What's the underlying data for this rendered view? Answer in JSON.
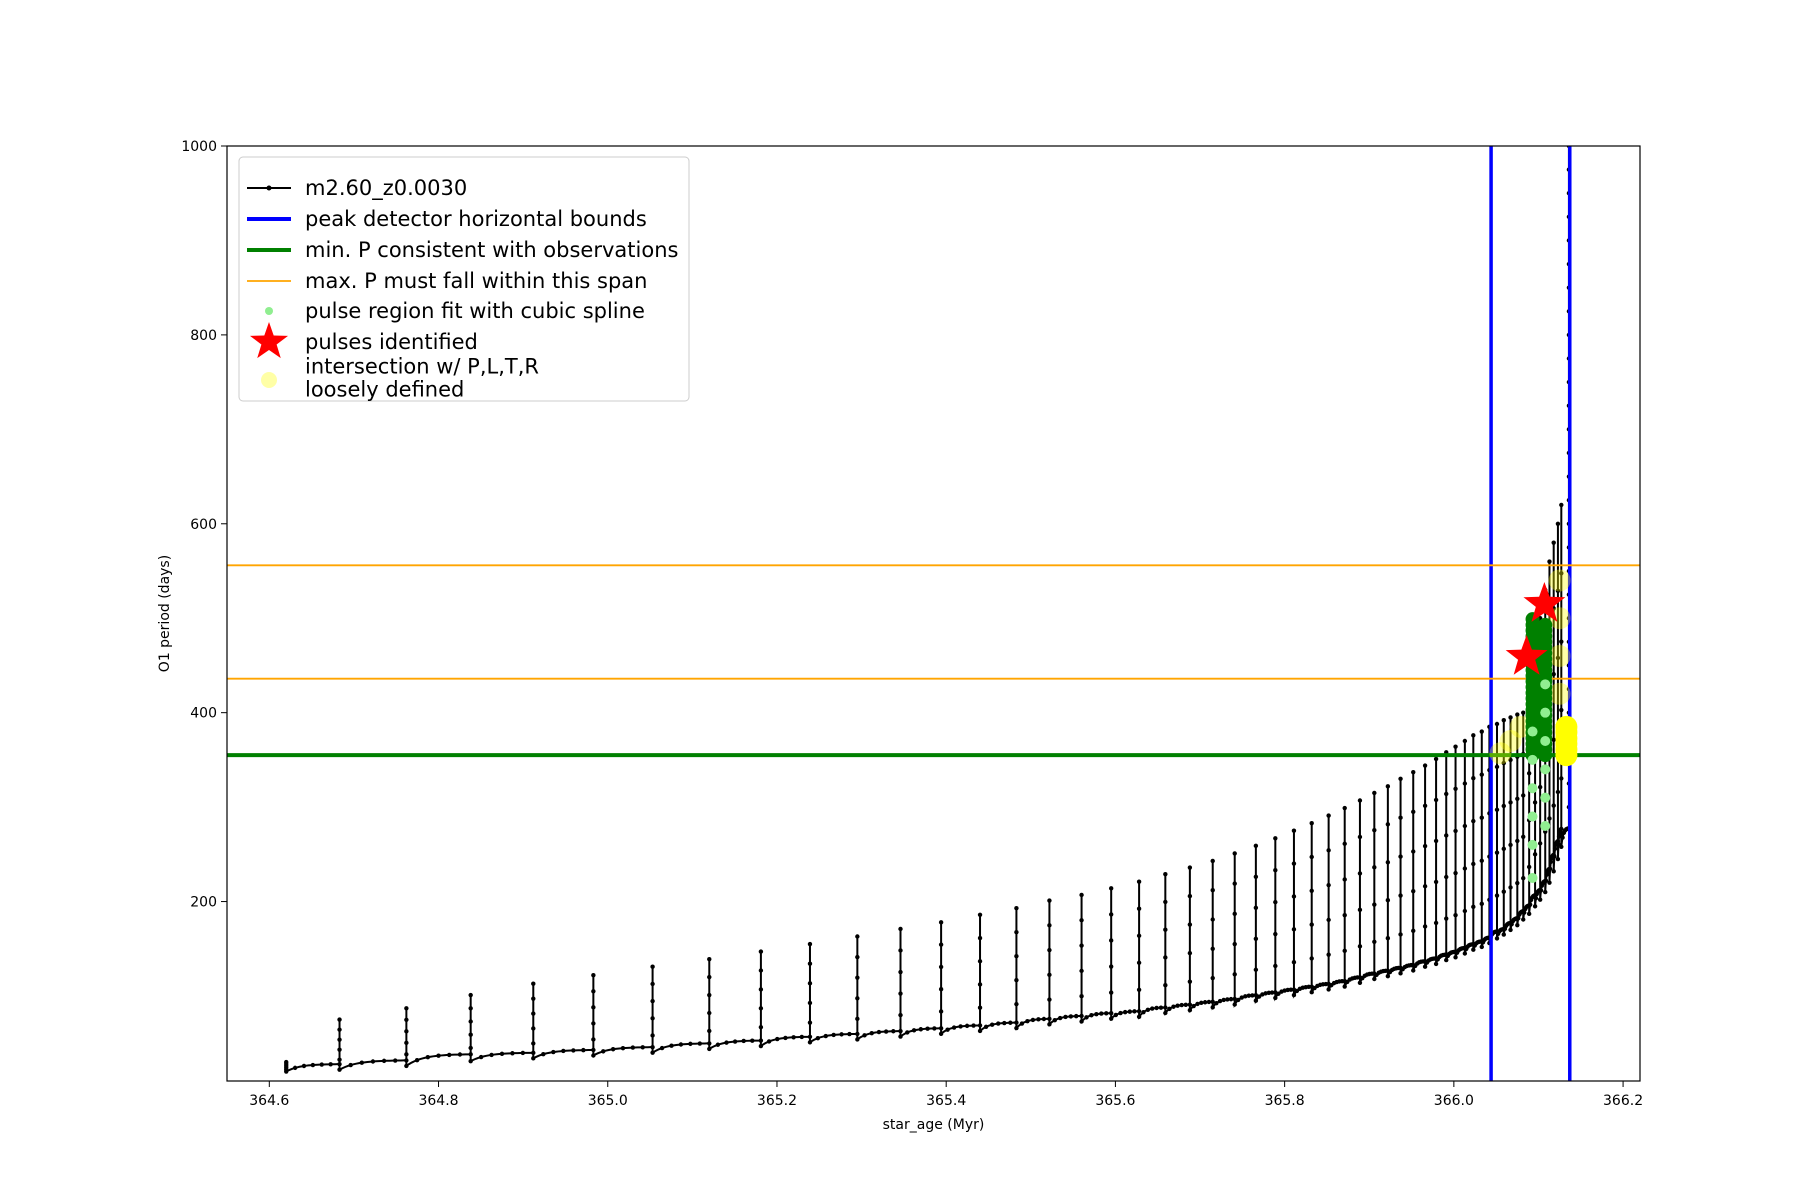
{
  "chart_data": {
    "type": "line",
    "title": "",
    "xlabel": "star_age (Myr)",
    "ylabel": "O1 period (days)",
    "xlim": [
      364.55,
      366.22
    ],
    "ylim": [
      10,
      1000
    ],
    "grid": false,
    "legend_placement": "top-left",
    "x_ticks": [
      {
        "value": 364.6,
        "label": "364.6"
      },
      {
        "value": 364.8,
        "label": "364.8"
      },
      {
        "value": 365.0,
        "label": "365.0"
      },
      {
        "value": 365.2,
        "label": "365.2"
      },
      {
        "value": 365.4,
        "label": "365.4"
      },
      {
        "value": 365.6,
        "label": "365.6"
      },
      {
        "value": 365.8,
        "label": "365.8"
      },
      {
        "value": 366.0,
        "label": "366.0"
      },
      {
        "value": 366.2,
        "label": "366.2"
      }
    ],
    "y_ticks": [
      {
        "value": 200,
        "label": "200"
      },
      {
        "value": 400,
        "label": "400"
      },
      {
        "value": 600,
        "label": "600"
      },
      {
        "value": 800,
        "label": "800"
      },
      {
        "value": 1000,
        "label": "1000"
      }
    ],
    "series": [
      {
        "name": "m2.60_z0.0030",
        "color": "#000000",
        "marker": "dot",
        "pulse_ages": [
          364.62,
          364.683,
          364.762,
          364.838,
          364.912,
          364.983,
          365.053,
          365.12,
          365.181,
          365.239,
          365.295,
          365.346,
          365.394,
          365.44,
          365.483,
          365.522,
          365.56,
          365.595,
          365.628,
          365.659,
          365.688,
          365.715,
          365.741,
          365.766,
          365.789,
          365.811,
          365.832,
          365.852,
          365.871,
          365.889,
          365.906,
          365.922,
          365.937,
          365.952,
          365.966,
          365.979,
          365.991,
          366.002,
          366.013,
          366.023,
          366.033,
          366.042,
          366.051,
          366.059,
          366.067,
          366.075,
          366.082,
          366.089,
          366.096,
          366.102,
          366.108,
          366.113,
          366.118,
          366.123,
          366.127
        ],
        "pulse_base_period": [
          20,
          22,
          26,
          31,
          34,
          37,
          40,
          44,
          47,
          51,
          54,
          57,
          60,
          63,
          66,
          70,
          73,
          76,
          78,
          82,
          85,
          88,
          91,
          95,
          98,
          101,
          104,
          107,
          110,
          114,
          118,
          121,
          124,
          127,
          131,
          134,
          138,
          141,
          145,
          149,
          152,
          156,
          161,
          165,
          170,
          175,
          181,
          187,
          195,
          202,
          210,
          220,
          232,
          245,
          258
        ],
        "pulse_peak_period": [
          30,
          75,
          87,
          101,
          113,
          122,
          131,
          139,
          147,
          155,
          163,
          171,
          178,
          186,
          193,
          201,
          207,
          214,
          221,
          229,
          236,
          243,
          251,
          259,
          267,
          275,
          283,
          291,
          299,
          307,
          315,
          322,
          330,
          337,
          344,
          351,
          358,
          364,
          370,
          376,
          380,
          385,
          388,
          392,
          395,
          398,
          400,
          435,
          470,
          500,
          530,
          560,
          580,
          600,
          620
        ],
        "final_rise_age": 366.136,
        "final_rise_period": 1000
      },
      {
        "name": "peak detector horizontal bounds",
        "type": "vline",
        "color": "#0000ff",
        "values": [
          366.044,
          366.137
        ]
      },
      {
        "name": "min. P consistent with observations",
        "type": "hline",
        "color": "#008000",
        "values": [
          355
        ]
      },
      {
        "name": "max. P must fall within this span",
        "type": "hline",
        "color": "#ffa500",
        "values": [
          436,
          556
        ]
      },
      {
        "name": "pulse region fit with cubic spline",
        "type": "scatter",
        "color": "#90ee90",
        "x": [
          366.093,
          366.093,
          366.093,
          366.093,
          366.093,
          366.093,
          366.108,
          366.108,
          366.108,
          366.108,
          366.108,
          366.108
        ],
        "y": [
          225,
          260,
          290,
          320,
          350,
          380,
          280,
          310,
          340,
          370,
          400,
          430
        ]
      },
      {
        "name": "pulses identified",
        "type": "scatter",
        "marker": "star",
        "color": "#ff0000",
        "x": [
          366.086,
          366.107
        ],
        "y": [
          459,
          515
        ]
      },
      {
        "name": "intersection w/ P,L,T,R\nloosely defined",
        "type": "scatter",
        "color": "#ffff00",
        "x": [
          366.055,
          366.067,
          366.079,
          366.125,
          366.125,
          366.125,
          366.125,
          366.133,
          366.133,
          366.133
        ],
        "y": [
          357,
          370,
          385,
          420,
          460,
          500,
          540,
          360,
          370,
          382
        ]
      }
    ],
    "highlight_regions": [
      {
        "color": "#008000",
        "x": 366.093,
        "y_range": [
          355,
          500
        ]
      },
      {
        "color": "#008000",
        "x": 366.108,
        "y_range": [
          355,
          496
        ]
      },
      {
        "color": "#ffff00",
        "x": 366.133,
        "y_range": [
          355,
          388
        ]
      }
    ]
  }
}
